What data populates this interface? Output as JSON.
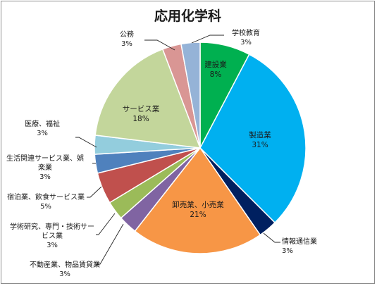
{
  "chart_data": {
    "type": "pie",
    "title": "応用化学科",
    "slices": [
      {
        "name": "建設業",
        "value": 8,
        "value_label": "8%",
        "color": "#00b050",
        "label_position": "inside"
      },
      {
        "name": "製造業",
        "value": 31,
        "value_label": "31%",
        "color": "#00b0f0",
        "label_position": "inside"
      },
      {
        "name": "情報通信業",
        "value": 3,
        "value_label": "3%",
        "color": "#002060",
        "label_position": "outside"
      },
      {
        "name": "卸売業、小売業",
        "value": 21,
        "value_label": "21%",
        "color": "#f79646",
        "label_position": "inside"
      },
      {
        "name": "不動産業、物品賃貸業",
        "value": 3,
        "value_label": "3%",
        "color": "#8064a2",
        "label_position": "outside"
      },
      {
        "name": "学術研究、専門・技術サービス業",
        "value": 3,
        "value_label": "3%",
        "color": "#9bbb59",
        "label_position": "outside"
      },
      {
        "name": "宿泊業、飲食サービス業",
        "value": 5,
        "value_label": "5%",
        "color": "#c0504d",
        "label_position": "outside"
      },
      {
        "name": "生活関連サービス業、娯楽業",
        "value": 3,
        "value_label": "3%",
        "color": "#4f81bd",
        "label_position": "outside"
      },
      {
        "name": "医療、福祉",
        "value": 3,
        "value_label": "3%",
        "color": "#93cddd",
        "label_position": "outside"
      },
      {
        "name": "サービス業",
        "value": 18,
        "value_label": "18%",
        "color": "#c3d69b",
        "label_position": "inside"
      },
      {
        "name": "公務",
        "value": 3,
        "value_label": "3%",
        "color": "#d99694",
        "label_position": "outside"
      },
      {
        "name": "学校教育",
        "value": 3,
        "value_label": "3%",
        "color": "#95b3d7",
        "label_position": "outside"
      }
    ],
    "legend": "none"
  }
}
